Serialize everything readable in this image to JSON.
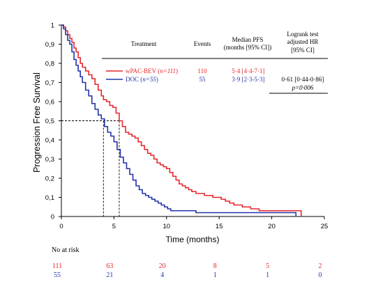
{
  "chart_data": {
    "type": "line",
    "ylabel": "Progression Free Survival",
    "xlabel": "Time (months)",
    "xlim": [
      0,
      25
    ],
    "ylim": [
      0,
      1
    ],
    "x_ticks": [
      "0",
      "5",
      "10",
      "15",
      "20",
      "25"
    ],
    "y_ticks": [
      "0",
      "0,1",
      "0,2",
      "0,3",
      "0,4",
      "0,5",
      "0,6",
      "0,7",
      "0,8",
      "0,9",
      "1"
    ],
    "series": [
      {
        "name": "wPAC-BEV (n=111)",
        "color": "#e8262b",
        "x": [
          0,
          0.2,
          0.4,
          0.6,
          0.8,
          1.0,
          1.2,
          1.4,
          1.6,
          1.8,
          2.0,
          2.3,
          2.6,
          2.9,
          3.2,
          3.5,
          3.8,
          4.0,
          4.3,
          4.6,
          4.9,
          5.2,
          5.5,
          5.8,
          6.1,
          6.4,
          6.7,
          7.0,
          7.3,
          7.6,
          7.9,
          8.2,
          8.5,
          8.8,
          9.1,
          9.4,
          9.7,
          10.0,
          10.3,
          10.6,
          10.9,
          11.2,
          11.5,
          11.8,
          12.1,
          12.4,
          12.8,
          13.2,
          13.6,
          14.0,
          14.4,
          14.8,
          15.2,
          15.6,
          16.0,
          16.4,
          16.8,
          17.2,
          17.6,
          18.0,
          18.4,
          18.8,
          19.2,
          19.6,
          20.0,
          20.4,
          20.8,
          21.2,
          21.6,
          22.0,
          22.4,
          22.8
        ],
        "y": [
          1.0,
          0.99,
          0.97,
          0.95,
          0.93,
          0.91,
          0.88,
          0.86,
          0.83,
          0.8,
          0.78,
          0.76,
          0.74,
          0.72,
          0.69,
          0.66,
          0.63,
          0.61,
          0.6,
          0.58,
          0.57,
          0.54,
          0.5,
          0.47,
          0.44,
          0.43,
          0.42,
          0.41,
          0.39,
          0.37,
          0.35,
          0.33,
          0.32,
          0.3,
          0.28,
          0.27,
          0.26,
          0.25,
          0.23,
          0.21,
          0.19,
          0.17,
          0.16,
          0.15,
          0.14,
          0.13,
          0.12,
          0.12,
          0.11,
          0.11,
          0.1,
          0.1,
          0.09,
          0.08,
          0.07,
          0.06,
          0.06,
          0.05,
          0.05,
          0.04,
          0.04,
          0.03,
          0.03,
          0.03,
          0.03,
          0.03,
          0.03,
          0.03,
          0.03,
          0.03,
          0.03,
          0.0
        ]
      },
      {
        "name": "DOC (n=55)",
        "color": "#2233aa",
        "x": [
          0,
          0.2,
          0.4,
          0.6,
          0.8,
          1.0,
          1.2,
          1.4,
          1.6,
          1.8,
          2.0,
          2.3,
          2.6,
          2.9,
          3.2,
          3.5,
          3.8,
          4.1,
          4.4,
          4.7,
          5.0,
          5.3,
          5.6,
          5.9,
          6.2,
          6.5,
          6.8,
          7.1,
          7.4,
          7.7,
          8.0,
          8.3,
          8.6,
          8.9,
          9.2,
          9.5,
          9.8,
          10.1,
          10.4,
          10.8,
          11.2,
          11.6,
          12.0,
          12.4,
          12.8,
          13.2,
          13.6,
          14.0,
          14.5,
          15.0,
          15.5,
          16.0,
          16.5,
          17.0,
          17.5,
          18.0,
          18.5,
          19.0,
          19.5,
          20.0,
          20.5,
          21.0,
          21.5,
          22.0,
          22.3
        ],
        "y": [
          1.0,
          0.98,
          0.95,
          0.92,
          0.9,
          0.86,
          0.82,
          0.79,
          0.76,
          0.73,
          0.7,
          0.66,
          0.63,
          0.59,
          0.56,
          0.53,
          0.51,
          0.47,
          0.44,
          0.42,
          0.39,
          0.35,
          0.31,
          0.28,
          0.25,
          0.22,
          0.19,
          0.16,
          0.14,
          0.12,
          0.11,
          0.1,
          0.09,
          0.08,
          0.07,
          0.06,
          0.05,
          0.04,
          0.03,
          0.03,
          0.03,
          0.03,
          0.03,
          0.03,
          0.02,
          0.02,
          0.02,
          0.02,
          0.02,
          0.02,
          0.02,
          0.02,
          0.02,
          0.02,
          0.02,
          0.02,
          0.02,
          0.02,
          0.02,
          0.02,
          0.02,
          0.02,
          0.02,
          0.02,
          0.0
        ]
      }
    ],
    "median_lines": {
      "y": 0.5,
      "x": [
        4.0,
        5.5
      ]
    },
    "table": {
      "headers": {
        "treatment": "Treatment",
        "events": "Events",
        "median_1": "Median PFS",
        "median_2": "(months [95% CI])",
        "hr_1": "Logrank test",
        "hr_2": "adjusted HR",
        "hr_3": "[95% CI]"
      },
      "rows": [
        {
          "name_base": "wPAC-BEV (",
          "name_n": "n=111",
          "name_end": ")",
          "events": "110",
          "median": "5·4 [4·4-7·1]",
          "color": "#e8262b"
        },
        {
          "name_base": "DOC (",
          "name_n": "n=55",
          "name_end": ")",
          "events": "55",
          "median": "3·9 [2·3-5·3]",
          "color": "#2233aa"
        }
      ],
      "hr_value": "0·61 [0·44-0·86]",
      "p_value": "p=0·006"
    },
    "at_risk": {
      "label": "No at risk",
      "rows": [
        {
          "values": [
            "111",
            "63",
            "20",
            "8",
            "5",
            "2"
          ],
          "color": "#e8262b"
        },
        {
          "values": [
            "55",
            "21",
            "4",
            "1",
            "1",
            "0"
          ],
          "color": "#2233aa"
        }
      ]
    }
  }
}
